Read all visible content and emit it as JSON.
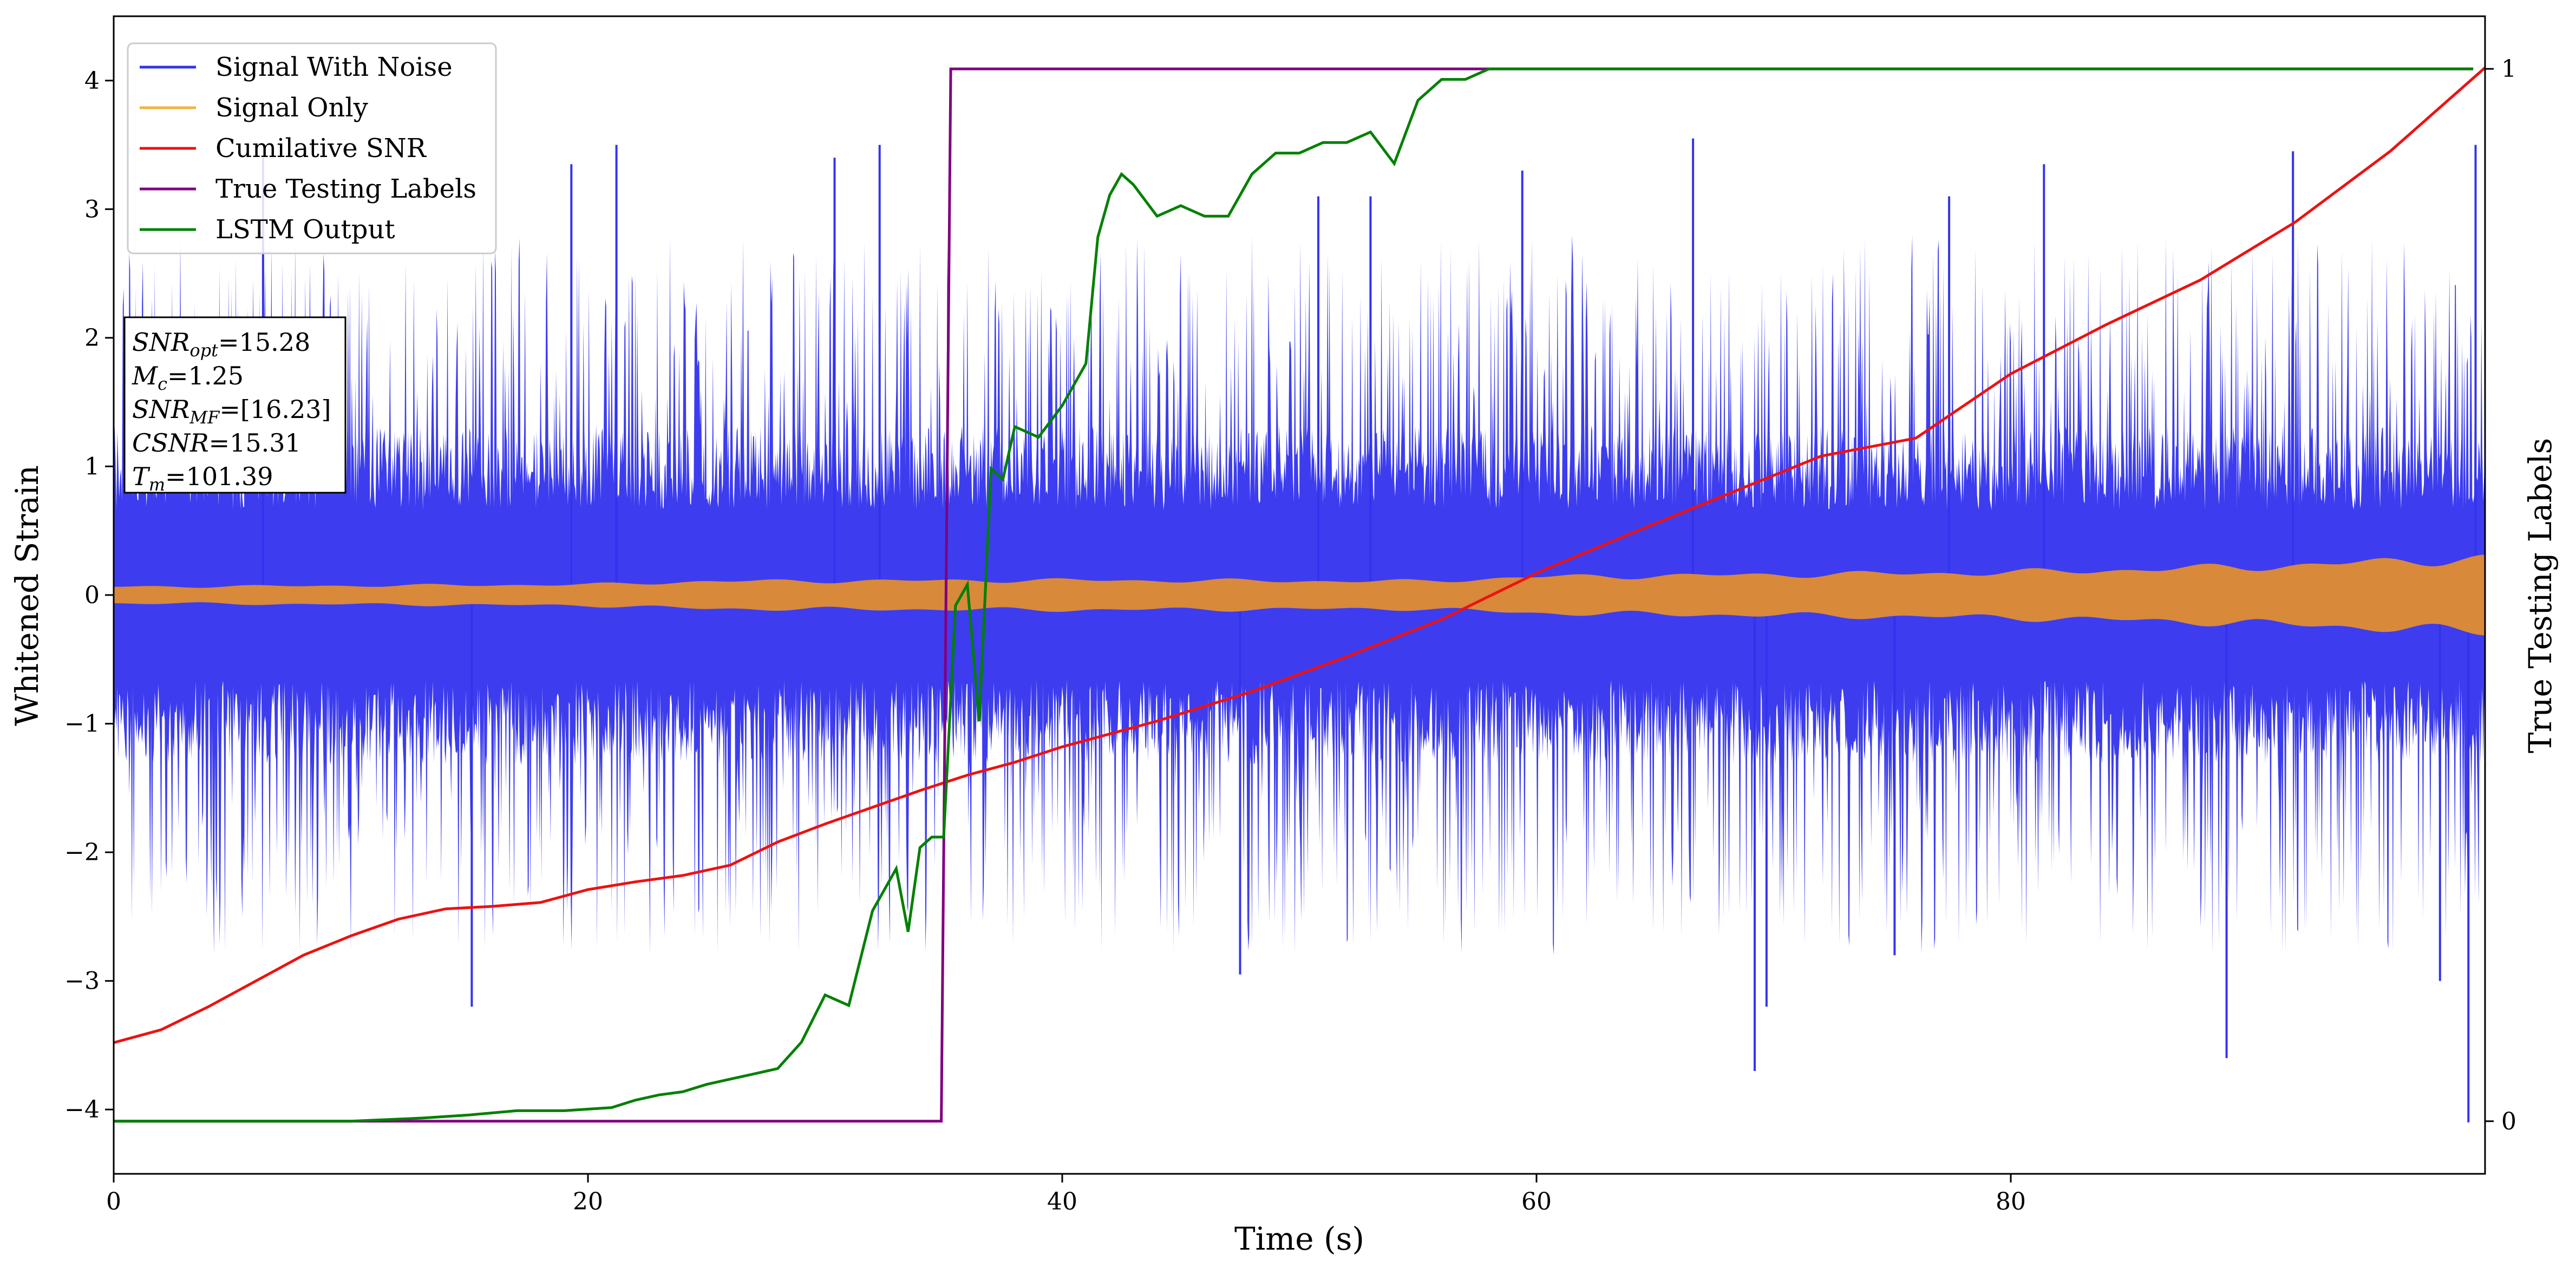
{
  "chart_data": {
    "type": "line",
    "xlabel": "Time (s)",
    "ylabel": "Whitened Strain",
    "y2label": "True Testing Labels",
    "xlim": [
      0,
      100
    ],
    "ylim": [
      -4.5,
      4.5
    ],
    "y2lim": [
      -0.05,
      1.05
    ],
    "xticks": [
      "0",
      "20",
      "40",
      "60",
      "80"
    ],
    "xtick_values": [
      0,
      20,
      40,
      60,
      80
    ],
    "yticks": [
      "−4",
      "−3",
      "−2",
      "−1",
      "0",
      "1",
      "2",
      "3",
      "4"
    ],
    "ytick_values": [
      -4,
      -3,
      -2,
      -1,
      0,
      1,
      2,
      3,
      4
    ],
    "y2ticks": [
      "0",
      "1"
    ],
    "y2tick_values": [
      0,
      1
    ],
    "grid": false,
    "legend_position": "top-left",
    "legend": [
      {
        "name": "Signal With Noise",
        "color": "#3333ee"
      },
      {
        "name": "Signal Only",
        "color": "#f5b041"
      },
      {
        "name": "Cumilative SNR",
        "color": "#ee1111"
      },
      {
        "name": "True Testing Labels",
        "color": "#800080"
      },
      {
        "name": "LSTM Output",
        "color": "#008000"
      }
    ],
    "info_box": {
      "snr_opt": {
        "name": "SNR",
        "sub": "opt",
        "value": "=15.28"
      },
      "mc": {
        "name": "M",
        "sub": "c",
        "value": "=1.25"
      },
      "snr_mf": {
        "name": "SNR",
        "sub": "MF",
        "value": "=[16.23]"
      },
      "csnr": {
        "name": "CSNR",
        "sub": "",
        "value": "=15.31"
      },
      "tm": {
        "name": "T",
        "sub": "m",
        "value": "=101.39"
      }
    },
    "series": [
      {
        "name": "Signal With Noise",
        "axis": "left",
        "color": "#3333ee",
        "description": "dense noisy strain, approx. ±1.2 typical with spikes to ±3.5",
        "envelope_typical": 1.2,
        "envelope_peak": 3.5,
        "spikes": [
          [
            15.1,
            -3.2
          ],
          [
            6.3,
            3.4
          ],
          [
            19.3,
            3.35
          ],
          [
            21.2,
            3.5
          ],
          [
            30.4,
            3.4
          ],
          [
            32.3,
            3.5
          ],
          [
            47.5,
            -2.95
          ],
          [
            50.8,
            3.1
          ],
          [
            53.0,
            3.1
          ],
          [
            59.4,
            3.3
          ],
          [
            66.6,
            3.55
          ],
          [
            69.2,
            -3.7
          ],
          [
            69.7,
            -3.2
          ],
          [
            75.1,
            -2.8
          ],
          [
            77.4,
            3.1
          ],
          [
            81.4,
            3.35
          ],
          [
            89.1,
            -3.6
          ],
          [
            91.9,
            3.45
          ],
          [
            98.1,
            -3.0
          ],
          [
            99.3,
            -4.1
          ],
          [
            99.6,
            3.5
          ]
        ]
      },
      {
        "name": "Signal Only",
        "axis": "left",
        "color": "#f5b041",
        "description": "chirp amplitude envelope",
        "envelope": [
          [
            0,
            0.07
          ],
          [
            10,
            0.08
          ],
          [
            20,
            0.09
          ],
          [
            25,
            0.12
          ],
          [
            40,
            0.13
          ],
          [
            55,
            0.12
          ],
          [
            60,
            0.16
          ],
          [
            70,
            0.18
          ],
          [
            80,
            0.2
          ],
          [
            90,
            0.25
          ],
          [
            100,
            0.33
          ]
        ]
      },
      {
        "name": "Cumilative SNR",
        "axis": "left",
        "color": "#ee1111",
        "x": [
          0,
          2,
          4,
          6,
          8,
          10,
          12,
          14,
          16,
          18,
          20,
          22,
          24,
          26,
          28,
          30,
          32,
          34,
          36,
          38,
          40,
          44,
          48,
          52,
          56,
          60,
          64,
          68,
          72,
          76,
          80,
          84,
          88,
          92,
          96,
          100
        ],
        "y": [
          -3.48,
          -3.38,
          -3.2,
          -3.0,
          -2.8,
          -2.65,
          -2.52,
          -2.44,
          -2.42,
          -2.39,
          -2.29,
          -2.23,
          -2.18,
          -2.1,
          -1.92,
          -1.78,
          -1.65,
          -1.52,
          -1.4,
          -1.3,
          -1.18,
          -0.98,
          -0.75,
          -0.48,
          -0.19,
          0.17,
          0.48,
          0.78,
          1.08,
          1.22,
          1.72,
          2.1,
          2.45,
          2.9,
          3.45,
          4.1
        ]
      },
      {
        "name": "True Testing Labels",
        "axis": "right",
        "color": "#800080",
        "x": [
          0,
          34.9,
          35.3,
          99.5
        ],
        "y": [
          0,
          0,
          1,
          1
        ]
      },
      {
        "name": "LSTM Output",
        "axis": "right",
        "color": "#008000",
        "x": [
          0,
          10,
          13,
          15,
          17,
          19,
          21,
          22,
          23,
          24,
          25,
          26,
          27,
          28,
          29,
          30,
          31,
          32,
          33,
          33.5,
          34,
          34.5,
          35,
          35.5,
          36,
          36.5,
          37,
          37.5,
          38,
          39,
          40,
          41,
          41.5,
          42,
          42.5,
          43,
          44,
          45,
          46,
          47,
          48,
          49,
          50,
          51,
          52,
          53,
          54,
          55,
          56,
          57,
          58,
          60,
          62,
          65,
          99.5
        ],
        "y": [
          0,
          0,
          0.003,
          0.006,
          0.01,
          0.01,
          0.013,
          0.02,
          0.025,
          0.028,
          0.035,
          0.04,
          0.045,
          0.05,
          0.075,
          0.12,
          0.11,
          0.2,
          0.24,
          0.18,
          0.26,
          0.27,
          0.27,
          0.49,
          0.51,
          0.38,
          0.62,
          0.61,
          0.66,
          0.65,
          0.68,
          0.72,
          0.84,
          0.88,
          0.9,
          0.89,
          0.86,
          0.87,
          0.86,
          0.86,
          0.9,
          0.92,
          0.92,
          0.93,
          0.93,
          0.94,
          0.91,
          0.97,
          0.99,
          0.99,
          1.0,
          1.0,
          1.0,
          1.0,
          1.0
        ]
      }
    ]
  }
}
